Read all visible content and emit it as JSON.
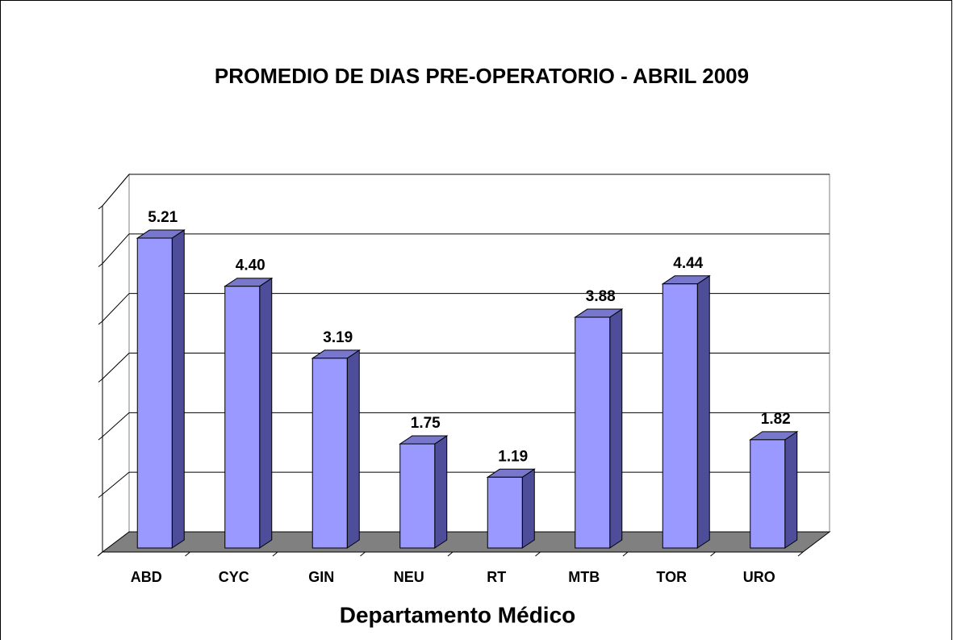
{
  "chart_data": {
    "type": "bar3d",
    "title": "PROMEDIO DE DIAS PRE-OPERATORIO - ABRIL 2009",
    "x_label": "Departamento Médico",
    "categories": [
      "ABD",
      "CYC",
      "GIN",
      "NEU",
      "RT",
      "MTB",
      "TOR",
      "URO"
    ],
    "values": [
      5.21,
      4.4,
      3.19,
      1.75,
      1.19,
      3.88,
      4.44,
      1.82
    ],
    "value_labels": [
      "5.21",
      "4.40",
      "3.19",
      "1.75",
      "1.19",
      "3.88",
      "4.44",
      "1.82"
    ],
    "color": "#9999ff",
    "ylim": [
      0,
      6
    ],
    "yticks": [
      0,
      1,
      2,
      3,
      4,
      5,
      6
    ],
    "grid": true
  }
}
